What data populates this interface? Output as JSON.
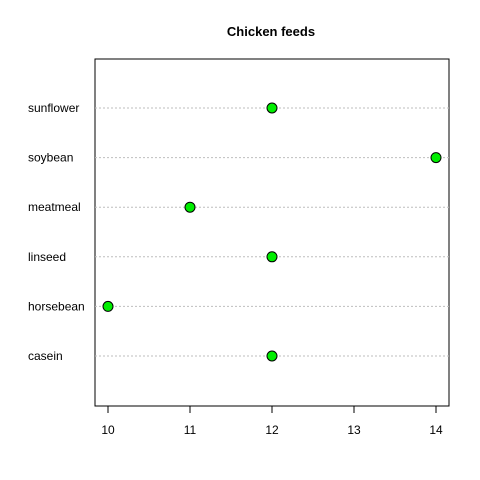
{
  "chart_data": {
    "type": "scatter",
    "subtype": "dotchart",
    "title": "Chicken feeds",
    "xlabel": "",
    "ylabel": "",
    "categories": [
      "casein",
      "horsebean",
      "linseed",
      "meatmeal",
      "soybean",
      "sunflower"
    ],
    "values": [
      12,
      10,
      12,
      11,
      14,
      12
    ],
    "xlim": [
      10,
      14
    ],
    "xticks": [
      10,
      11,
      12,
      13,
      14
    ],
    "gridlines": "horizontal dotted",
    "point_color": "#00ee00",
    "point_edge_color": "#000000",
    "gridline_color": "#bebebe"
  }
}
